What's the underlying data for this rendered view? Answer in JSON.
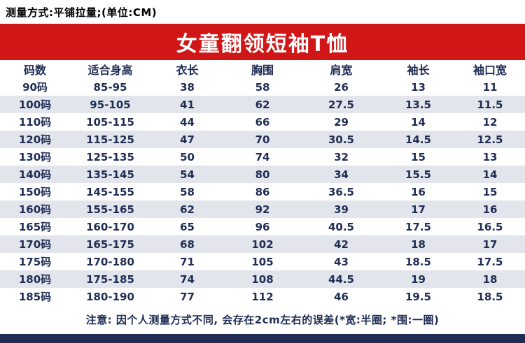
{
  "header": {
    "measure_note": "测量方式:平铺拉量;(单位:CM)",
    "title": "女童翻领短袖T恤"
  },
  "footer": {
    "note": "注意: 因个人测量方式不同, 会存在2cm左右的误差(*宽:半圈; *围:一圈)"
  },
  "colors": {
    "banner_red": "#d01616",
    "text_navy": "#1f2c54",
    "row_alt": "#e2e5eb",
    "bottom_bar_navy": "#1f2c54"
  },
  "chart_data": {
    "type": "table",
    "title": "女童翻领短袖T恤",
    "unit": "CM",
    "columns": [
      "码数",
      "适合身高",
      "衣长",
      "胸围",
      "肩宽",
      "袖长",
      "袖口宽"
    ],
    "rows": [
      [
        "90码",
        "85-95",
        "38",
        "58",
        "26",
        "13",
        "11"
      ],
      [
        "100码",
        "95-105",
        "41",
        "62",
        "27.5",
        "13.5",
        "11.5"
      ],
      [
        "110码",
        "105-115",
        "44",
        "66",
        "29",
        "14",
        "12"
      ],
      [
        "120码",
        "115-125",
        "47",
        "70",
        "30.5",
        "14.5",
        "12.5"
      ],
      [
        "130码",
        "125-135",
        "50",
        "74",
        "32",
        "15",
        "13"
      ],
      [
        "140码",
        "135-145",
        "54",
        "80",
        "34",
        "15.5",
        "14"
      ],
      [
        "150码",
        "145-155",
        "58",
        "86",
        "36.5",
        "16",
        "15"
      ],
      [
        "160码",
        "155-165",
        "62",
        "92",
        "39",
        "17",
        "16"
      ],
      [
        "165码",
        "160-170",
        "65",
        "96",
        "40.5",
        "17.5",
        "16.5"
      ],
      [
        "170码",
        "165-175",
        "68",
        "102",
        "42",
        "18",
        "17"
      ],
      [
        "175码",
        "170-180",
        "71",
        "105",
        "43",
        "18.5",
        "17.5"
      ],
      [
        "180码",
        "175-185",
        "74",
        "108",
        "44.5",
        "19",
        "18"
      ],
      [
        "185码",
        "180-190",
        "77",
        "112",
        "46",
        "19.5",
        "18.5"
      ]
    ]
  }
}
